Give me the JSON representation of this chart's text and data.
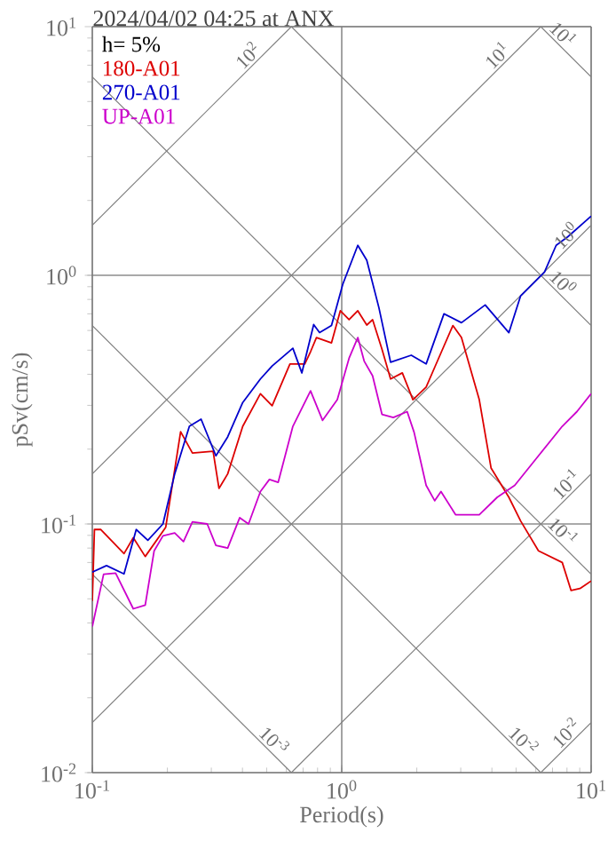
{
  "chart_data": {
    "type": "line",
    "title": "2024/04/02 04:25 at ANX",
    "xlabel": "Period(s)",
    "ylabel": "pSv(cm/s)",
    "log": "xy",
    "grid": true,
    "legend": "top left",
    "xlim": [
      0.1,
      10
    ],
    "ylim": [
      0.01,
      10
    ],
    "xticks": [
      {
        "value": 0.1,
        "label": "10$^{-1}$"
      },
      {
        "value": 1,
        "label": "10$^{0}$"
      },
      {
        "value": 10,
        "label": "10$^{1}$"
      }
    ],
    "yticks": [
      {
        "value": 0.01,
        "label": "10$^{-2}$"
      },
      {
        "value": 0.1,
        "label": "10$^{-1}$"
      },
      {
        "value": 1,
        "label": "10$^{0}$"
      },
      {
        "value": 10,
        "label": "10$^{1}$"
      }
    ],
    "annotations": [
      "h= 5%",
      {
        "text": "10$^{2}$",
        "x": 0.45,
        "y": 7.16
      },
      {
        "text": "10$^{1}$",
        "x": 4.5,
        "y": 7.16
      },
      {
        "text": "10$^{0}$",
        "x": 8.5,
        "y": 1.35
      },
      {
        "text": "10$^{-1}$",
        "x": 8.5,
        "y": 0.135
      },
      {
        "text": "10$^{-2}$",
        "x": 8.5,
        "y": 0.0135
      },
      {
        "text": "10$^{1}$",
        "x": 7.2,
        "y": 8.73
      },
      {
        "text": "10$^{0}$",
        "x": 7.2,
        "y": 0.873
      },
      {
        "text": "10$^{-1}$",
        "x": 7.2,
        "y": 0.0873
      },
      {
        "text": "10$^{-2}$",
        "x": 5.0,
        "y": 0.01257
      },
      {
        "text": "10$^{-3}$",
        "x": 0.5,
        "y": 0.01257
      }
    ],
    "series": [
      {
        "type": "line",
        "color": "#808080",
        "x": [
          0.1,
          0.628
        ],
        "values": [
          1.59,
          10
        ]
      },
      {
        "type": "line",
        "color": "#808080",
        "x": [
          0.1,
          6.28
        ],
        "values": [
          0.159,
          10
        ]
      },
      {
        "type": "line",
        "color": "#808080",
        "x": [
          0.1,
          10
        ],
        "values": [
          0.0159,
          1.59
        ]
      },
      {
        "type": "line",
        "color": "#808080",
        "x": [
          0.628,
          10
        ],
        "values": [
          0.01,
          0.159
        ]
      },
      {
        "type": "line",
        "color": "#808080",
        "x": [
          6.28,
          10
        ],
        "values": [
          0.01,
          0.0159
        ]
      },
      {
        "type": "line",
        "color": "#808080",
        "x": [
          6.28,
          10
        ],
        "values": [
          10,
          6.28
        ]
      },
      {
        "type": "line",
        "color": "#808080",
        "x": [
          0.628,
          10
        ],
        "values": [
          10,
          0.628
        ]
      },
      {
        "type": "line",
        "color": "#808080",
        "x": [
          0.1,
          10
        ],
        "values": [
          6.28,
          0.0628
        ]
      },
      {
        "type": "line",
        "color": "#808080",
        "x": [
          0.1,
          6.28
        ],
        "values": [
          0.628,
          0.01
        ]
      },
      {
        "type": "line",
        "color": "#808080",
        "x": [
          0.1,
          0.628
        ],
        "values": [
          0.0628,
          0.01
        ]
      },
      {
        "name": "180-A01",
        "color": "#dd0000",
        "x": [
          0.1,
          0.102,
          0.108,
          0.134,
          0.146,
          0.163,
          0.197,
          0.226,
          0.252,
          0.305,
          0.322,
          0.349,
          0.401,
          0.472,
          0.526,
          0.62,
          0.711,
          0.75,
          0.792,
          0.91,
          0.987,
          1.07,
          1.16,
          1.26,
          1.33,
          1.45,
          1.57,
          1.75,
          1.93,
          2.18,
          2.36,
          2.79,
          3.02,
          3.56,
          3.97,
          4.68,
          5.21,
          6.15,
          7.66,
          8.31,
          9.02,
          10
        ],
        "values": [
          0.049,
          0.095,
          0.095,
          0.076,
          0.088,
          0.074,
          0.097,
          0.235,
          0.193,
          0.196,
          0.139,
          0.159,
          0.247,
          0.334,
          0.299,
          0.44,
          0.44,
          0.493,
          0.562,
          0.535,
          0.72,
          0.663,
          0.72,
          0.631,
          0.663,
          0.504,
          0.383,
          0.405,
          0.316,
          0.355,
          0.427,
          0.628,
          0.562,
          0.316,
          0.168,
          0.128,
          0.103,
          0.078,
          0.07,
          0.054,
          0.055,
          0.059
        ]
      },
      {
        "name": "270-A01",
        "color": "#0000cc",
        "x": [
          0.1,
          0.114,
          0.134,
          0.15,
          0.167,
          0.192,
          0.214,
          0.245,
          0.273,
          0.313,
          0.349,
          0.401,
          0.472,
          0.526,
          0.637,
          0.692,
          0.772,
          0.815,
          0.91,
          1.01,
          1.16,
          1.26,
          1.41,
          1.57,
          1.9,
          2.18,
          2.57,
          3.02,
          3.76,
          4.68,
          5.21,
          6.5,
          7.24,
          8.07,
          10
        ],
        "values": [
          0.064,
          0.068,
          0.063,
          0.095,
          0.086,
          0.1,
          0.159,
          0.247,
          0.264,
          0.188,
          0.224,
          0.308,
          0.383,
          0.432,
          0.509,
          0.405,
          0.634,
          0.588,
          0.628,
          0.921,
          1.32,
          1.15,
          0.74,
          0.447,
          0.477,
          0.44,
          0.7,
          0.645,
          0.76,
          0.588,
          0.825,
          1.03,
          1.32,
          1.43,
          1.73
        ]
      },
      {
        "name": "UP-A01",
        "color": "#cc00cc",
        "x": [
          0.1,
          0.111,
          0.124,
          0.146,
          0.163,
          0.177,
          0.192,
          0.214,
          0.232,
          0.252,
          0.289,
          0.313,
          0.349,
          0.39,
          0.423,
          0.472,
          0.513,
          0.556,
          0.637,
          0.75,
          0.838,
          0.96,
          1.07,
          1.16,
          1.23,
          1.33,
          1.45,
          1.61,
          1.83,
          1.95,
          2.18,
          2.36,
          2.5,
          2.86,
          3.56,
          4.2,
          4.94,
          6.15,
          7.66,
          8.77,
          10
        ],
        "values": [
          0.0387,
          0.0628,
          0.0634,
          0.0456,
          0.0472,
          0.078,
          0.0896,
          0.092,
          0.085,
          0.102,
          0.1,
          0.082,
          0.08,
          0.106,
          0.1,
          0.135,
          0.151,
          0.147,
          0.247,
          0.343,
          0.261,
          0.316,
          0.464,
          0.562,
          0.452,
          0.394,
          0.276,
          0.268,
          0.283,
          0.234,
          0.143,
          0.124,
          0.135,
          0.109,
          0.109,
          0.128,
          0.143,
          0.188,
          0.247,
          0.283,
          0.334
        ]
      }
    ]
  }
}
